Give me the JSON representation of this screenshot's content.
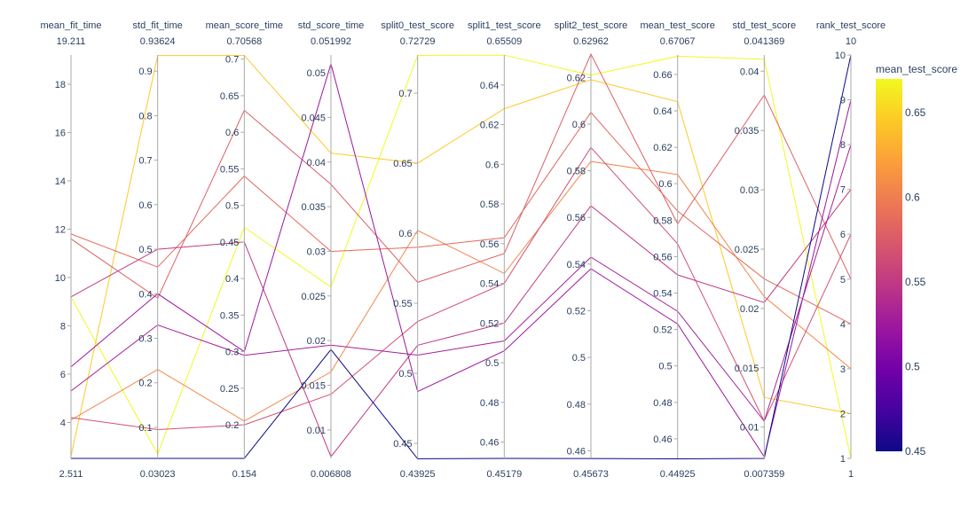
{
  "chart_data": {
    "type": "parallel_coordinates",
    "color_dimension": "mean_test_score",
    "colorscale": [
      "#0d0887",
      "#46039f",
      "#7201a8",
      "#9c179e",
      "#bd3786",
      "#d8576b",
      "#ed7953",
      "#fb9f3a",
      "#fdca26",
      "#f0f921"
    ],
    "colorbar": {
      "title": "mean_test_score",
      "range": [
        0.45,
        0.67
      ],
      "ticks": [
        0.45,
        0.5,
        0.55,
        0.6,
        0.65
      ],
      "tick_labels": [
        "0.45",
        "0.5",
        "0.55",
        "0.6",
        "0.65"
      ]
    },
    "dimensions": [
      {
        "name": "mean_fit_time",
        "min": 2.511,
        "max": 19.211,
        "min_label": "2.511",
        "max_label": "19.211",
        "ticks": [
          4,
          6,
          8,
          10,
          12,
          14,
          16,
          18
        ],
        "tick_labels": [
          "4",
          "6",
          "8",
          "10",
          "12",
          "14",
          "16",
          "18"
        ]
      },
      {
        "name": "std_fit_time",
        "min": 0.03023,
        "max": 0.93624,
        "min_label": "0.03023",
        "max_label": "0.93624",
        "ticks": [
          0.1,
          0.2,
          0.3,
          0.4,
          0.5,
          0.6,
          0.7,
          0.8,
          0.9
        ],
        "tick_labels": [
          "0.1",
          "0.2",
          "0.3",
          "0.4",
          "0.5",
          "0.6",
          "0.7",
          "0.8",
          "0.9"
        ]
      },
      {
        "name": "mean_score_time",
        "min": 0.154,
        "max": 0.70568,
        "min_label": "0.154",
        "max_label": "0.70568",
        "ticks": [
          0.2,
          0.25,
          0.3,
          0.35,
          0.4,
          0.45,
          0.5,
          0.55,
          0.6,
          0.65,
          0.7
        ],
        "tick_labels": [
          "0.2",
          "0.25",
          "0.3",
          "0.35",
          "0.4",
          "0.45",
          "0.5",
          "0.55",
          "0.6",
          "0.65",
          "0.7"
        ]
      },
      {
        "name": "std_score_time",
        "min": 0.006808,
        "max": 0.051992,
        "min_label": "0.006808",
        "max_label": "0.051992",
        "ticks": [
          0.01,
          0.015,
          0.02,
          0.025,
          0.03,
          0.035,
          0.04,
          0.045,
          0.05
        ],
        "tick_labels": [
          "0.01",
          "0.015",
          "0.02",
          "0.025",
          "0.03",
          "0.035",
          "0.04",
          "0.045",
          "0.05"
        ]
      },
      {
        "name": "split0_test_score",
        "min": 0.43925,
        "max": 0.72729,
        "min_label": "0.43925",
        "max_label": "0.72729",
        "ticks": [
          0.45,
          0.5,
          0.55,
          0.6,
          0.65,
          0.7
        ],
        "tick_labels": [
          "0.45",
          "0.5",
          "0.55",
          "0.6",
          "0.65",
          "0.7"
        ]
      },
      {
        "name": "split1_test_score",
        "min": 0.45179,
        "max": 0.65509,
        "min_label": "0.45179",
        "max_label": "0.65509",
        "ticks": [
          0.46,
          0.48,
          0.5,
          0.52,
          0.54,
          0.56,
          0.58,
          0.6,
          0.62,
          0.64
        ],
        "tick_labels": [
          "0.46",
          "0.48",
          "0.5",
          "0.52",
          "0.54",
          "0.56",
          "0.58",
          "0.6",
          "0.62",
          "0.64"
        ]
      },
      {
        "name": "split2_test_score",
        "min": 0.45673,
        "max": 0.62962,
        "min_label": "0.45673",
        "max_label": "0.62962",
        "ticks": [
          0.46,
          0.48,
          0.5,
          0.52,
          0.54,
          0.56,
          0.58,
          0.6,
          0.62
        ],
        "tick_labels": [
          "0.46",
          "0.48",
          "0.5",
          "0.52",
          "0.54",
          "0.56",
          "0.58",
          "0.6",
          "0.62"
        ]
      },
      {
        "name": "mean_test_score",
        "min": 0.44925,
        "max": 0.67067,
        "min_label": "0.44925",
        "max_label": "0.67067",
        "ticks": [
          0.46,
          0.48,
          0.5,
          0.52,
          0.54,
          0.56,
          0.58,
          0.6,
          0.62,
          0.64,
          0.66
        ],
        "tick_labels": [
          "0.46",
          "0.48",
          "0.5",
          "0.52",
          "0.54",
          "0.56",
          "0.58",
          "0.6",
          "0.62",
          "0.64",
          "0.66"
        ]
      },
      {
        "name": "std_test_score",
        "min": 0.007359,
        "max": 0.041369,
        "min_label": "0.007359",
        "max_label": "0.041369",
        "ticks": [
          0.01,
          0.015,
          0.02,
          0.025,
          0.03,
          0.035,
          0.04
        ],
        "tick_labels": [
          "0.01",
          "0.015",
          "0.02",
          "0.025",
          "0.03",
          "0.035",
          "0.04"
        ]
      },
      {
        "name": "rank_test_score",
        "min": 1,
        "max": 10,
        "min_label": "1",
        "max_label": "10",
        "ticks": [
          1,
          2,
          3,
          4,
          5,
          6,
          7,
          8,
          9,
          10
        ],
        "tick_labels": [
          "1",
          "2",
          "3",
          "4",
          "5",
          "6",
          "7",
          "8",
          "9",
          "10"
        ]
      }
    ],
    "rows": [
      [
        9.2,
        0.04,
        0.47,
        0.026,
        0.727,
        0.655,
        0.621,
        0.67,
        0.041,
        1
      ],
      [
        2.6,
        0.935,
        0.705,
        0.041,
        0.65,
        0.628,
        0.619,
        0.645,
        0.0125,
        2
      ],
      [
        4.1,
        0.23,
        0.205,
        0.0165,
        0.602,
        0.545,
        0.584,
        0.605,
        0.021,
        3
      ],
      [
        11.8,
        0.46,
        0.54,
        0.03,
        0.59,
        0.563,
        0.605,
        0.585,
        0.0225,
        4
      ],
      [
        11.6,
        0.39,
        0.63,
        0.0375,
        0.565,
        0.555,
        0.63,
        0.578,
        0.038,
        5
      ],
      [
        4.2,
        0.095,
        0.2,
        0.014,
        0.537,
        0.54,
        0.59,
        0.567,
        0.0105,
        6
      ],
      [
        9.2,
        0.5,
        0.45,
        0.007,
        0.52,
        0.52,
        0.565,
        0.55,
        0.0205,
        7
      ],
      [
        5.3,
        0.33,
        0.295,
        0.0195,
        0.513,
        0.511,
        0.543,
        0.53,
        0.0105,
        8
      ],
      [
        6.3,
        0.4,
        0.3,
        0.051,
        0.487,
        0.506,
        0.538,
        0.523,
        0.0075,
        9
      ],
      [
        2.511,
        0.03023,
        0.154,
        0.019,
        0.439,
        0.4518,
        0.4567,
        0.449,
        0.00736,
        10
      ]
    ]
  }
}
